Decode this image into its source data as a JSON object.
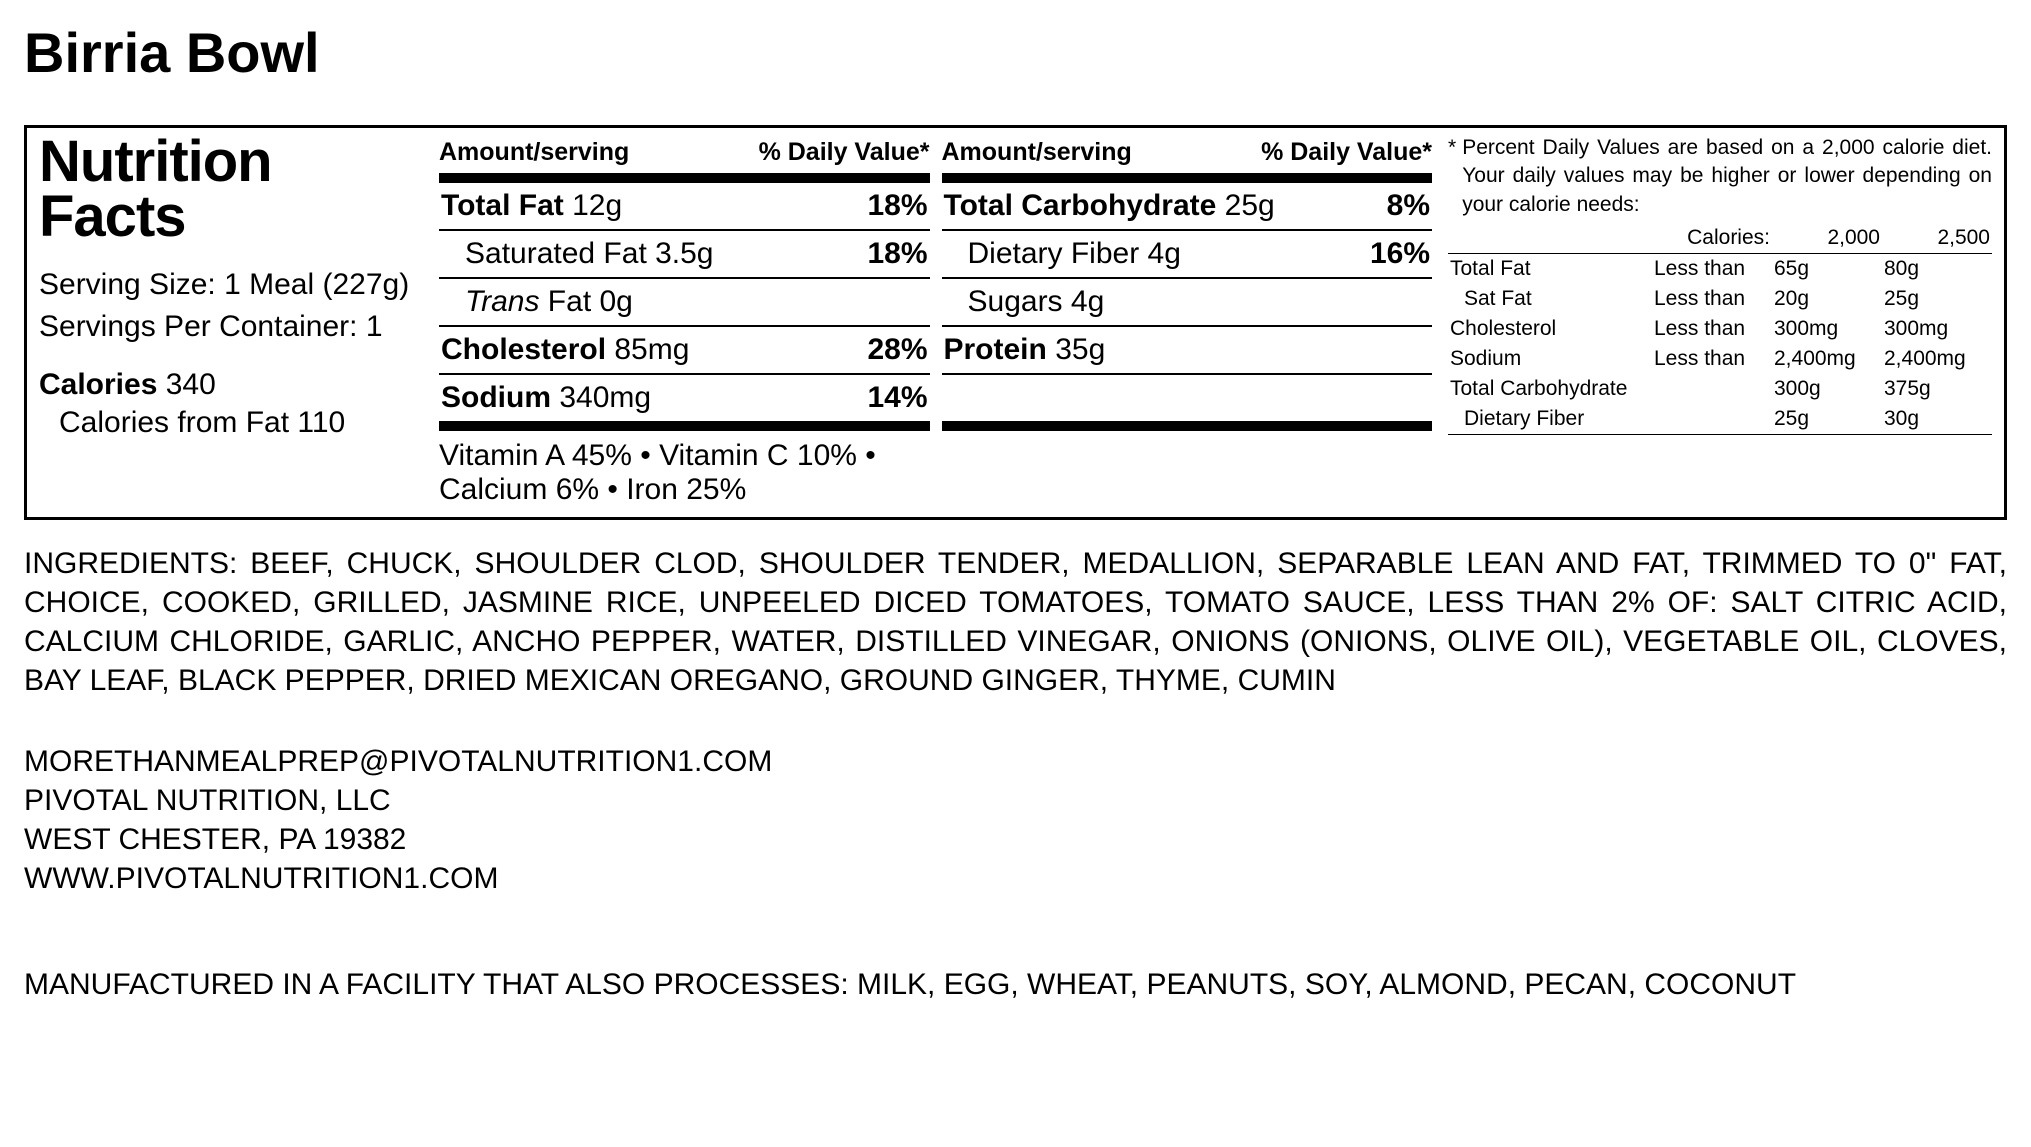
{
  "product_title": "Birria Bowl",
  "panel": {
    "title": "Nutrition Facts",
    "serving_size": "Serving Size: 1 Meal (227g)",
    "servings_per": "Servings Per Container: 1",
    "calories_label": "Calories",
    "calories_value": "340",
    "calories_from_fat": "Calories from Fat 110",
    "col_header_amount": "Amount/serving",
    "col_header_dv": "% Daily Value*",
    "left_col": [
      {
        "label_bold": "Total Fat",
        "label_val": "12g",
        "dv": "18%",
        "sub": false,
        "thick": false
      },
      {
        "label_bold": "",
        "label_val": "Saturated Fat 3.5g",
        "dv": "18%",
        "sub": true,
        "thick": false
      },
      {
        "label_bold": "",
        "label_val": "Trans Fat 0g",
        "dv": "",
        "sub": true,
        "thick": false,
        "italic_word": "Trans",
        "rest": " Fat 0g"
      },
      {
        "label_bold": "Cholesterol",
        "label_val": "85mg",
        "dv": "28%",
        "sub": false,
        "thick": false
      },
      {
        "label_bold": "Sodium",
        "label_val": "340mg",
        "dv": "14%",
        "sub": false,
        "thick": true
      }
    ],
    "right_col": [
      {
        "label_bold": "Total Carbohydrate",
        "label_val": "25g",
        "dv": "8%",
        "sub": false,
        "thick": false
      },
      {
        "label_bold": "",
        "label_val": "Dietary Fiber 4g",
        "dv": "16%",
        "sub": true,
        "thick": false
      },
      {
        "label_bold": "",
        "label_val": "Sugars 4g",
        "dv": "",
        "sub": true,
        "thick": false
      },
      {
        "label_bold": "Protein",
        "label_val": "35g",
        "dv": "",
        "sub": false,
        "thick": false
      },
      {
        "label_bold": "",
        "label_val": "",
        "dv": "",
        "sub": false,
        "thick": true,
        "empty": true
      }
    ],
    "vitamins": "Vitamin A 45% • Vitamin C 10% • Calcium 6% • Iron 25%",
    "dv_note": "Percent Daily Values are based on a 2,000 calorie diet. Your daily values may be higher or lower depending on your calorie needs:",
    "dv_table": {
      "header": [
        "",
        "Calories:",
        "2,000",
        "2,500"
      ],
      "rows": [
        [
          "Total Fat",
          "Less than",
          "65g",
          "80g",
          false
        ],
        [
          "Sat Fat",
          "Less than",
          "20g",
          "25g",
          true
        ],
        [
          "Cholesterol",
          "Less than",
          "300mg",
          "300mg",
          false
        ],
        [
          "Sodium",
          "Less than",
          "2,400mg",
          "2,400mg",
          false
        ],
        [
          "Total Carbohydrate",
          "",
          "300g",
          "375g",
          false
        ],
        [
          "Dietary Fiber",
          "",
          "25g",
          "30g",
          true
        ]
      ]
    }
  },
  "ingredients": "INGREDIENTS: BEEF, CHUCK, SHOULDER CLOD, SHOULDER TENDER, MEDALLION, SEPARABLE LEAN AND FAT, TRIMMED TO 0\" FAT, CHOICE, COOKED, GRILLED, JASMINE RICE, UNPEELED DICED TOMATOES, TOMATO SAUCE, LESS THAN 2% OF: SALT CITRIC ACID, CALCIUM CHLORIDE, GARLIC, ANCHO PEPPER, WATER, DISTILLED VINEGAR, ONIONS (ONIONS, OLIVE OIL), VEGETABLE OIL, CLOVES, BAY LEAF, BLACK PEPPER, DRIED MEXICAN OREGANO, GROUND GINGER, THYME, CUMIN",
  "contact": {
    "email": "MORETHANMEALPREP@PIVOTALNUTRITION1.COM",
    "company": "PIVOTAL NUTRITION, LLC",
    "address": "WEST CHESTER, PA 19382",
    "website": "WWW.PIVOTALNUTRITION1.COM"
  },
  "allergens": "MANUFACTURED IN A FACILITY THAT ALSO PROCESSES: MILK, EGG, WHEAT, PEANUTS, SOY, ALMOND, PECAN, COCONUT"
}
